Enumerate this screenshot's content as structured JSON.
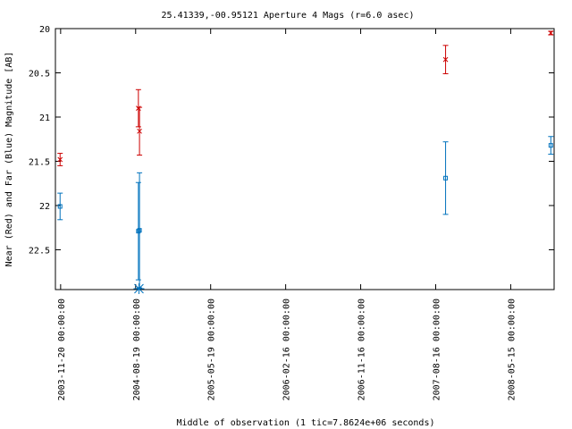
{
  "chart_data": {
    "type": "scatter",
    "title": "25.41339,-00.95121   Aperture 4 Mags (r=6.0 asec)",
    "xlabel": "Middle of observation (1 tic=7.8624e+06 seconds)",
    "ylabel": "Near (Red) and Far (Blue) Magnitude [AB]",
    "ylim": [
      22.95,
      20.0
    ],
    "y_inverted": true,
    "y_ticks": [
      "20",
      "20.5",
      "21",
      "21.5",
      "22",
      "22.5"
    ],
    "x_ticks": [
      "2003-11-20 00:00:00",
      "2004-08-19 00:00:00",
      "2005-05-19 00:00:00",
      "2006-02-16 00:00:00",
      "2006-11-16 00:00:00",
      "2007-08-16 00:00:00",
      "2008-05-15 00:00:00"
    ],
    "xlim": [
      "2003-11-01",
      "2008-10-20"
    ],
    "grid": false,
    "series": [
      {
        "name": "Near",
        "color": "#cc0000",
        "marker": "x",
        "points": [
          {
            "x": "2003-11-18",
            "y": 21.48,
            "err": 0.07
          },
          {
            "x": "2004-08-29",
            "y": 20.9,
            "err": 0.21
          },
          {
            "x": "2004-09-02",
            "y": 21.16,
            "err": 0.27
          },
          {
            "x": "2007-09-21",
            "y": 20.35,
            "err": 0.16
          },
          {
            "x": "2008-10-08",
            "y": 20.05,
            "err": 0.02
          }
        ]
      },
      {
        "name": "Far",
        "color": "#0072bd",
        "marker": "square",
        "points": [
          {
            "x": "2003-11-18",
            "y": 22.01,
            "err": 0.15
          },
          {
            "x": "2004-08-29",
            "y": 22.29,
            "err": 0.55
          },
          {
            "x": "2004-09-02",
            "y": 22.28,
            "err": 0.65
          },
          {
            "x": "2007-09-21",
            "y": 21.69,
            "err": 0.41
          },
          {
            "x": "2008-10-08",
            "y": 21.32,
            "err": 0.1
          }
        ]
      }
    ],
    "upper_limits": [
      {
        "x": "2004-08-31",
        "color": "#0072bd"
      }
    ]
  }
}
